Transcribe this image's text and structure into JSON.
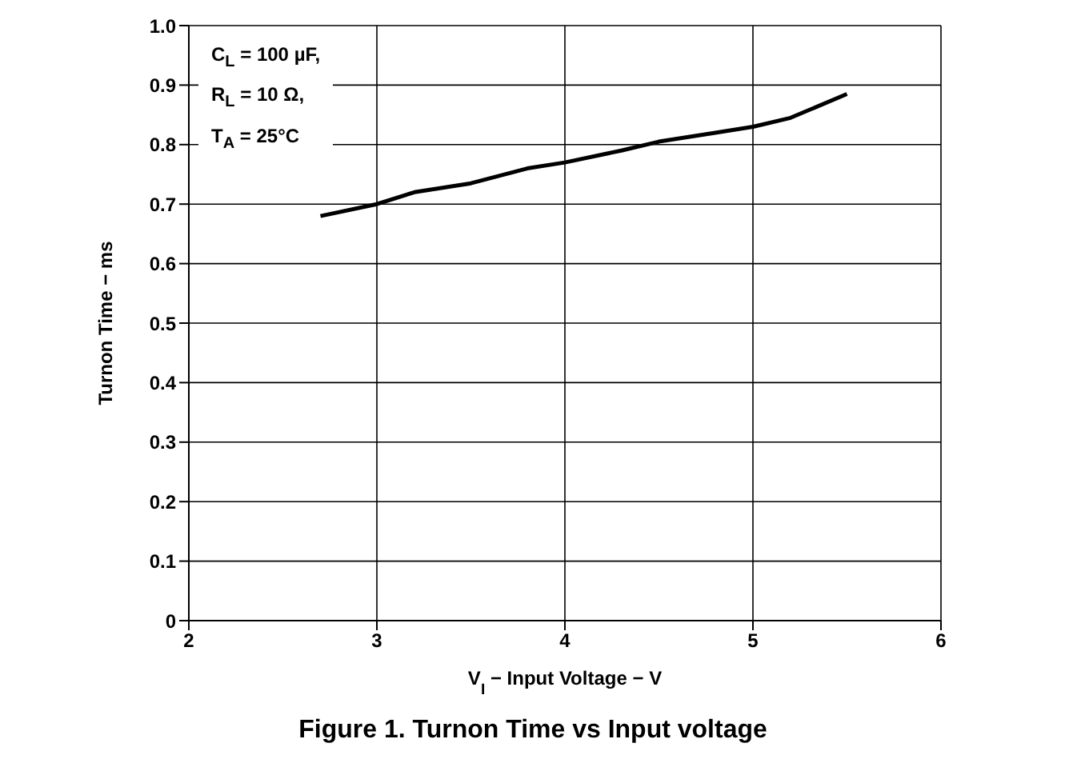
{
  "chart_data": {
    "type": "line",
    "title": "Figure 1. Turnon Time vs Input voltage",
    "xlabel": "V$_{I}$ − Input Voltage − V",
    "ylabel": "Turnon Time − ms",
    "annotations": [
      "C$_{L}$ = 100 µF,",
      "R$_{L}$ = 10 Ω,",
      "T$_{A}$ = 25°C"
    ],
    "x": [
      2.7,
      3.0,
      3.2,
      3.5,
      3.8,
      4.0,
      4.3,
      4.5,
      4.8,
      5.0,
      5.2,
      5.5
    ],
    "series": [
      {
        "color": "#000000",
        "values": [
          0.68,
          0.7,
          0.72,
          0.735,
          0.76,
          0.77,
          0.79,
          0.805,
          0.82,
          0.83,
          0.845,
          0.885
        ]
      }
    ],
    "xlim": [
      2,
      6
    ],
    "xticks": [
      2,
      3,
      4,
      5,
      6
    ],
    "ylim": [
      0,
      1.0
    ],
    "yticks": [
      0,
      0.1,
      0.2,
      0.3,
      0.4,
      0.5,
      0.6,
      0.7,
      0.8,
      0.9,
      {
        "value": 1.0,
        "label": "1.0"
      }
    ],
    "grid": true,
    "marker": "none",
    "line_style": "solid"
  }
}
